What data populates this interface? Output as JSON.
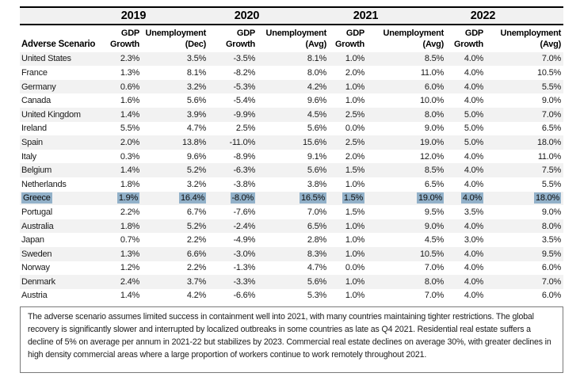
{
  "chart_data": {
    "type": "table",
    "title": "Adverse Scenario",
    "column_groups": [
      {
        "year": "2019",
        "col1_line1": "GDP",
        "col1_line2": "Growth",
        "col2_line1": "Unemployment",
        "col2_line2": "(Dec)"
      },
      {
        "year": "2020",
        "col1_line1": "GDP",
        "col1_line2": "Growth",
        "col2_line1": "Unemployment",
        "col2_line2": "(Avg)"
      },
      {
        "year": "2021",
        "col1_line1": "GDP",
        "col1_line2": "Growth",
        "col2_line1": "Unemployment",
        "col2_line2": "(Avg)"
      },
      {
        "year": "2022",
        "col1_line1": "GDP",
        "col1_line2": "Growth",
        "col2_line1": "Unemployment",
        "col2_line2": "(Avg)"
      }
    ],
    "rows": [
      {
        "country": "United States",
        "values": [
          "2.3%",
          "3.5%",
          "-3.5%",
          "8.1%",
          "1.0%",
          "8.5%",
          "4.0%",
          "7.0%"
        ],
        "highlight": false
      },
      {
        "country": "France",
        "values": [
          "1.3%",
          "8.1%",
          "-8.2%",
          "8.0%",
          "2.0%",
          "11.0%",
          "4.0%",
          "10.5%"
        ],
        "highlight": false
      },
      {
        "country": "Germany",
        "values": [
          "0.6%",
          "3.2%",
          "-5.3%",
          "4.2%",
          "1.0%",
          "6.0%",
          "4.0%",
          "5.5%"
        ],
        "highlight": false
      },
      {
        "country": "Canada",
        "values": [
          "1.6%",
          "5.6%",
          "-5.4%",
          "9.6%",
          "1.0%",
          "10.0%",
          "4.0%",
          "9.0%"
        ],
        "highlight": false
      },
      {
        "country": "United Kingdom",
        "values": [
          "1.4%",
          "3.9%",
          "-9.9%",
          "4.5%",
          "2.5%",
          "8.0%",
          "5.0%",
          "7.0%"
        ],
        "highlight": false
      },
      {
        "country": "Ireland",
        "values": [
          "5.5%",
          "4.7%",
          "2.5%",
          "5.6%",
          "0.0%",
          "9.0%",
          "5.0%",
          "6.5%"
        ],
        "highlight": false
      },
      {
        "country": "Spain",
        "values": [
          "2.0%",
          "13.8%",
          "-11.0%",
          "15.6%",
          "2.5%",
          "19.0%",
          "5.0%",
          "18.0%"
        ],
        "highlight": false
      },
      {
        "country": "Italy",
        "values": [
          "0.3%",
          "9.6%",
          "-8.9%",
          "9.1%",
          "2.0%",
          "12.0%",
          "4.0%",
          "11.0%"
        ],
        "highlight": false
      },
      {
        "country": "Belgium",
        "values": [
          "1.4%",
          "5.2%",
          "-6.3%",
          "5.6%",
          "1.5%",
          "8.5%",
          "4.0%",
          "7.5%"
        ],
        "highlight": false
      },
      {
        "country": "Netherlands",
        "values": [
          "1.8%",
          "3.2%",
          "-3.8%",
          "3.8%",
          "1.0%",
          "6.5%",
          "4.0%",
          "5.5%"
        ],
        "highlight": false
      },
      {
        "country": "Greece",
        "values": [
          "1.9%",
          "16.4%",
          "-8.0%",
          "16.5%",
          "1.5%",
          "19.0%",
          "4.0%",
          "18.0%"
        ],
        "highlight": true
      },
      {
        "country": "Portugal",
        "values": [
          "2.2%",
          "6.7%",
          "-7.6%",
          "7.0%",
          "1.5%",
          "9.5%",
          "3.5%",
          "9.0%"
        ],
        "highlight": false
      },
      {
        "country": "Australia",
        "values": [
          "1.8%",
          "5.2%",
          "-2.4%",
          "6.5%",
          "1.0%",
          "9.0%",
          "4.0%",
          "8.0%"
        ],
        "highlight": false
      },
      {
        "country": "Japan",
        "values": [
          "0.7%",
          "2.2%",
          "-4.9%",
          "2.8%",
          "1.0%",
          "4.5%",
          "3.0%",
          "3.5%"
        ],
        "highlight": false
      },
      {
        "country": "Sweden",
        "values": [
          "1.3%",
          "6.6%",
          "-3.0%",
          "8.3%",
          "1.0%",
          "10.5%",
          "4.0%",
          "9.5%"
        ],
        "highlight": false
      },
      {
        "country": "Norway",
        "values": [
          "1.2%",
          "2.2%",
          "-1.3%",
          "4.7%",
          "0.0%",
          "7.0%",
          "4.0%",
          "6.0%"
        ],
        "highlight": false
      },
      {
        "country": "Denmark",
        "values": [
          "2.4%",
          "3.7%",
          "-3.3%",
          "5.6%",
          "1.0%",
          "8.0%",
          "4.0%",
          "7.0%"
        ],
        "highlight": false
      },
      {
        "country": "Austria",
        "values": [
          "1.4%",
          "4.2%",
          "-6.6%",
          "5.3%",
          "1.0%",
          "7.0%",
          "4.0%",
          "6.0%"
        ],
        "highlight": false
      }
    ],
    "highlighted_row": "Greece",
    "layout_hints": {
      "striped": true,
      "first_data_row_shaded": true
    }
  },
  "footnote": "The adverse scenario assumes limited success in containment well into 2021, with many countries maintaining tighter restrictions. The global recovery is significantly slower and interrupted by localized outbreaks in some countries as late as Q4 2021. Residential real estate suffers a decline of 5% on average per annum in 2021-22 but stabilizes by 2023. Commercial real estate declines on average 30%, with greater declines in high density commercial areas where a large proportion of workers continue to work remotely throughout 2021.",
  "colors": {
    "highlight": "#92b1c9",
    "row_stripe": "#f2f2f2",
    "year_band": "#f1f1f1",
    "rule": "#000000",
    "footnote_border": "#7a7a7a",
    "text": "#1a1a1a"
  }
}
